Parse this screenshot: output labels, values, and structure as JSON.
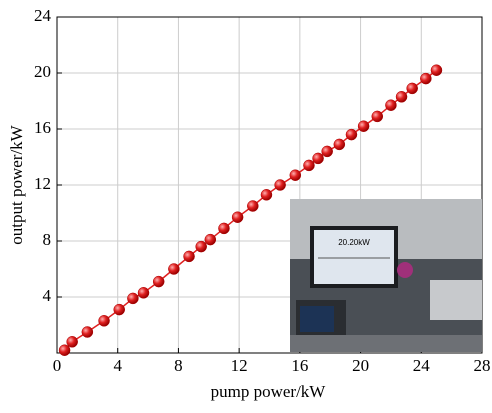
{
  "chart_data": {
    "type": "line-scatter",
    "xlabel": "pump power/kW",
    "ylabel": "output power/kW",
    "x": [
      0.5,
      1.0,
      2.0,
      3.1,
      4.1,
      5.0,
      5.7,
      6.7,
      7.7,
      8.7,
      9.5,
      10.1,
      11.0,
      11.9,
      12.9,
      13.8,
      14.7,
      15.7,
      16.6,
      17.2,
      17.8,
      18.6,
      19.4,
      20.2,
      21.1,
      22.0,
      22.7,
      23.4,
      24.3,
      25.0
    ],
    "series": [
      {
        "color": "#e02020",
        "values": [
          0.2,
          0.8,
          1.5,
          2.3,
          3.1,
          3.9,
          4.3,
          5.1,
          6.0,
          6.9,
          7.6,
          8.1,
          8.9,
          9.7,
          10.5,
          11.3,
          12.0,
          12.7,
          13.4,
          13.9,
          14.4,
          14.9,
          15.6,
          16.2,
          16.9,
          17.7,
          18.3,
          18.9,
          19.6,
          20.2
        ]
      }
    ],
    "xlim": [
      0,
      28
    ],
    "xticks": [
      0,
      4,
      8,
      12,
      16,
      20,
      24,
      28
    ],
    "ylim": [
      0,
      24
    ],
    "yticks": [
      4,
      8,
      12,
      16,
      20,
      24
    ],
    "grid": true,
    "inset_label": "20.20kW"
  }
}
